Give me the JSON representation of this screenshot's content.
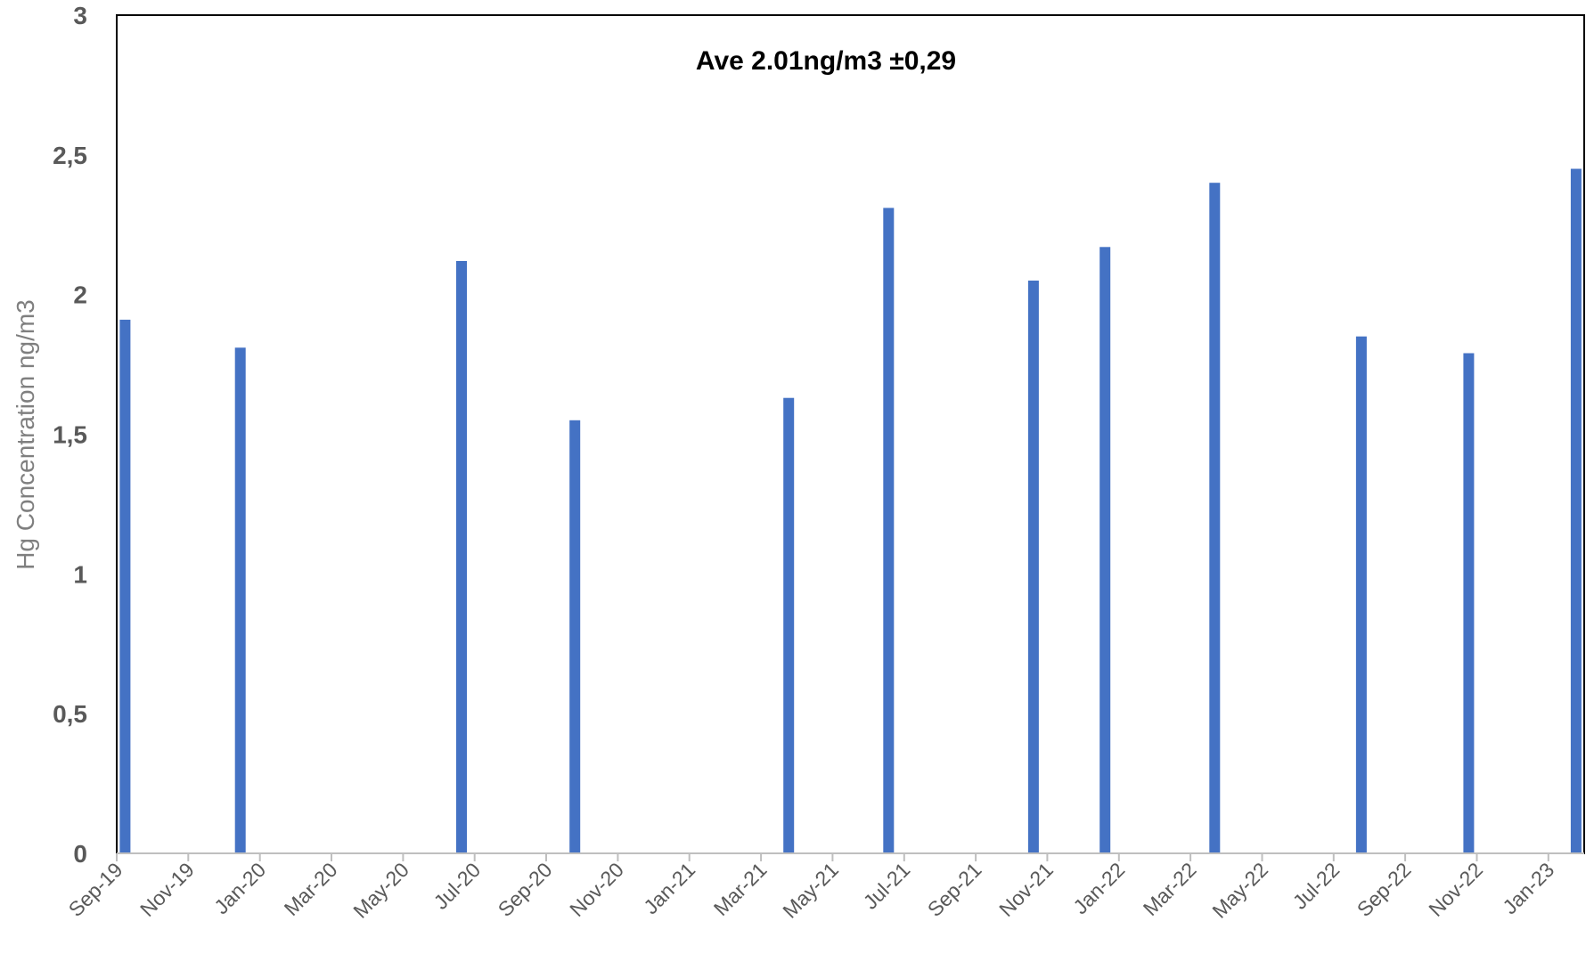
{
  "chart_data": {
    "type": "bar",
    "title": "",
    "annotation": "Ave 2.01ng/m3 ±0,29",
    "xlabel": "",
    "ylabel": "Hg Concentration ng/m3",
    "ylim": [
      0,
      3
    ],
    "y_ticks": [
      "0",
      "0,5",
      "1",
      "1,5",
      "2",
      "2,5",
      "3"
    ],
    "x_ticks": [
      "Sep-19",
      "Nov-19",
      "Jan-20",
      "Mar-20",
      "May-20",
      "Jul-20",
      "Sep-20",
      "Nov-20",
      "Jan-21",
      "Mar-21",
      "May-21",
      "Jul-21",
      "Sep-21",
      "Nov-21",
      "Jan-22",
      "Mar-22",
      "May-22",
      "Jul-22",
      "Sep-22",
      "Nov-22",
      "Jan-23"
    ],
    "x_range": [
      "2019-09",
      "2023-02"
    ],
    "grid": false,
    "legend": "none",
    "bar_color": "#4472C4",
    "points": [
      {
        "date": "2019-09-08",
        "value": 1.91
      },
      {
        "date": "2019-12-15",
        "value": 1.81
      },
      {
        "date": "2020-06-20",
        "value": 2.12
      },
      {
        "date": "2020-09-25",
        "value": 1.55
      },
      {
        "date": "2021-03-25",
        "value": 1.63
      },
      {
        "date": "2021-06-18",
        "value": 2.31
      },
      {
        "date": "2021-10-20",
        "value": 2.05
      },
      {
        "date": "2021-12-20",
        "value": 2.17
      },
      {
        "date": "2022-03-22",
        "value": 2.4
      },
      {
        "date": "2022-07-25",
        "value": 1.85
      },
      {
        "date": "2022-10-25",
        "value": 1.79
      },
      {
        "date": "2023-01-25",
        "value": 2.45
      }
    ]
  }
}
